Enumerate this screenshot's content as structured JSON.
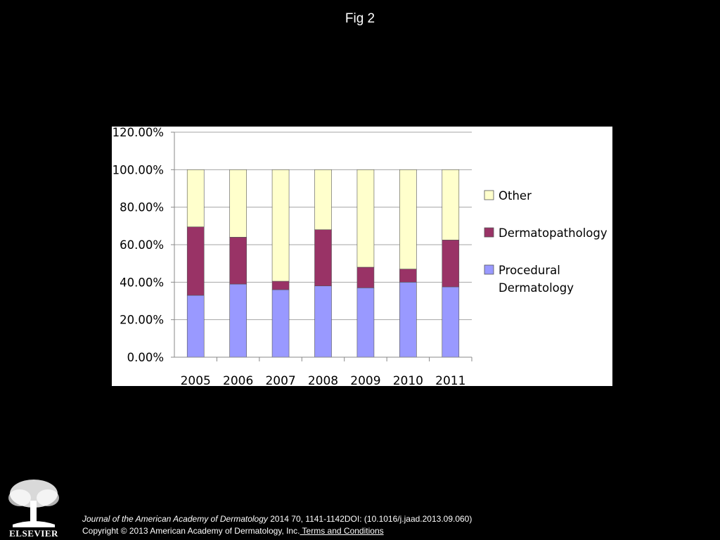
{
  "figure": {
    "title": "Fig 2"
  },
  "citation": {
    "journal": "Journal of the American Academy of Dermatology",
    "details": " 2014 70, 1141-1142DOI: (10.1016/j.jaad.2013.09.060)",
    "copyright": "Copyright © 2013 American Academy of Dermatology, Inc.",
    "terms_link": " Terms and Conditions"
  },
  "publisher": {
    "name": "ELSEVIER"
  },
  "colors": {
    "procedural": "#9999ff",
    "dermatopathology": "#993366",
    "other": "#ffffcc",
    "grid": "#a6a6a6"
  },
  "chart_data": {
    "type": "bar",
    "stacked": true,
    "title": "",
    "xlabel": "",
    "ylabel": "",
    "categories": [
      "2005",
      "2006",
      "2007",
      "2008",
      "2009",
      "2010",
      "2011"
    ],
    "ylim": [
      0,
      120
    ],
    "y_ticks": [
      0,
      20,
      40,
      60,
      80,
      100,
      120
    ],
    "y_tick_labels": [
      "0.00%",
      "20.00%",
      "40.00%",
      "60.00%",
      "80.00%",
      "100.00%",
      "120.00%"
    ],
    "grid": true,
    "legend_position": "right",
    "legend_order": [
      "Other",
      "Dermatopathology",
      "Procedural Dermatology"
    ],
    "series": [
      {
        "name": "Procedural Dermatology",
        "values": [
          33,
          39,
          36,
          38,
          37,
          40,
          37.5
        ]
      },
      {
        "name": "Dermatopathology",
        "values": [
          36.5,
          25,
          4.5,
          30,
          11,
          7,
          25
        ]
      },
      {
        "name": "Other",
        "values": [
          30.5,
          36,
          59.5,
          32,
          52,
          53,
          37.5
        ]
      }
    ]
  }
}
